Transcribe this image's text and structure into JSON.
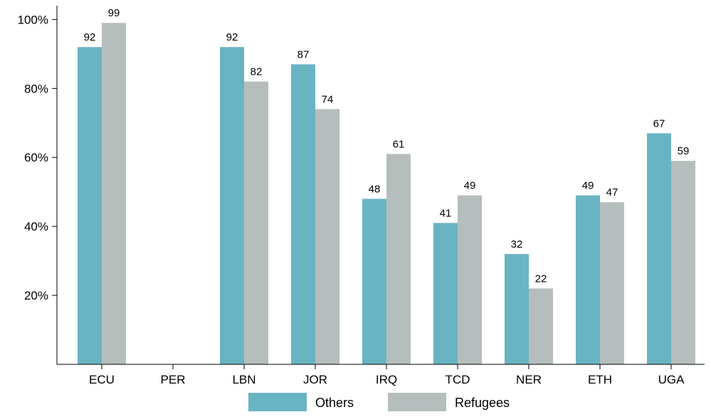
{
  "chart_data": {
    "type": "bar",
    "categories": [
      "ECU",
      "PER",
      "LBN",
      "JOR",
      "IRQ",
      "TCD",
      "NER",
      "ETH",
      "UGA"
    ],
    "series": [
      {
        "name": "Others",
        "color": "#69b4c3",
        "values": [
          92,
          null,
          92,
          87,
          48,
          41,
          32,
          49,
          67
        ]
      },
      {
        "name": "Refugees",
        "color": "#b6bdbd",
        "values": [
          99,
          null,
          82,
          74,
          61,
          49,
          22,
          47,
          59
        ]
      }
    ],
    "y_ticks": [
      20,
      40,
      60,
      80,
      100
    ],
    "y_tick_labels": [
      "20%",
      "40%",
      "60%",
      "80%",
      "100%"
    ],
    "ylim": [
      0,
      104
    ],
    "legend_position": "bottom-center",
    "grid": false,
    "title": "",
    "xlabel": "",
    "ylabel": ""
  }
}
